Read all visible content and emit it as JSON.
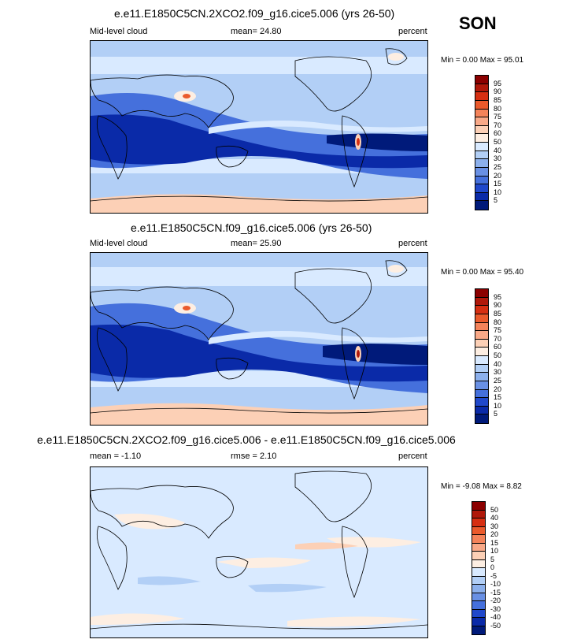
{
  "season": "SON",
  "panels": [
    {
      "title": "e.e11.E1850C5CN.2XCO2.f09_g16.cice5.006 (yrs 26-50)",
      "left_label": "Mid-level cloud",
      "center_label": "mean=  24.80",
      "right_label": "percent",
      "minmax": "Min =   0.00 Max =  95.01",
      "scale": "abs"
    },
    {
      "title": "e.e11.E1850C5CN.f09_g16.cice5.006 (yrs 26-50)",
      "left_label": "Mid-level cloud",
      "center_label": "mean=  25.90",
      "right_label": "percent",
      "minmax": "Min =   0.00 Max =  95.40",
      "scale": "abs"
    },
    {
      "title": "e.e11.E1850C5CN.2XCO2.f09_g16.cice5.006 - e.e11.E1850C5CN.f09_g16.cice5.006",
      "left_label": "mean =  -1.10",
      "center_label": "rmse =  2.10",
      "right_label": "percent",
      "minmax": "Min =  -9.08 Max =   8.82",
      "scale": "diff"
    }
  ],
  "colorbars": {
    "abs": {
      "labels": [
        "95",
        "90",
        "85",
        "80",
        "75",
        "70",
        "60",
        "50",
        "40",
        "30",
        "25",
        "20",
        "15",
        "10",
        "5"
      ],
      "colors": [
        "#8b0000",
        "#b0180a",
        "#d62f12",
        "#ea5a2c",
        "#f4835a",
        "#f9a988",
        "#fcd0b6",
        "#fdeee2",
        "#d9eaff",
        "#b2cff6",
        "#8cb0ec",
        "#6990e4",
        "#4570dc",
        "#2048cb",
        "#0a2aa8",
        "#001a7a"
      ]
    },
    "diff": {
      "labels": [
        "50",
        "40",
        "30",
        "20",
        "15",
        "10",
        "5",
        "0",
        "-5",
        "-10",
        "-15",
        "-20",
        "-30",
        "-40",
        "-50"
      ],
      "colors": [
        "#8b0000",
        "#b0180a",
        "#d62f12",
        "#ea5a2c",
        "#f4835a",
        "#f9a988",
        "#fcd0b6",
        "#fdeee2",
        "#d9eaff",
        "#b2cff6",
        "#8cb0ec",
        "#6990e4",
        "#4570dc",
        "#2048cb",
        "#0a2aa8",
        "#001a7a"
      ]
    }
  }
}
